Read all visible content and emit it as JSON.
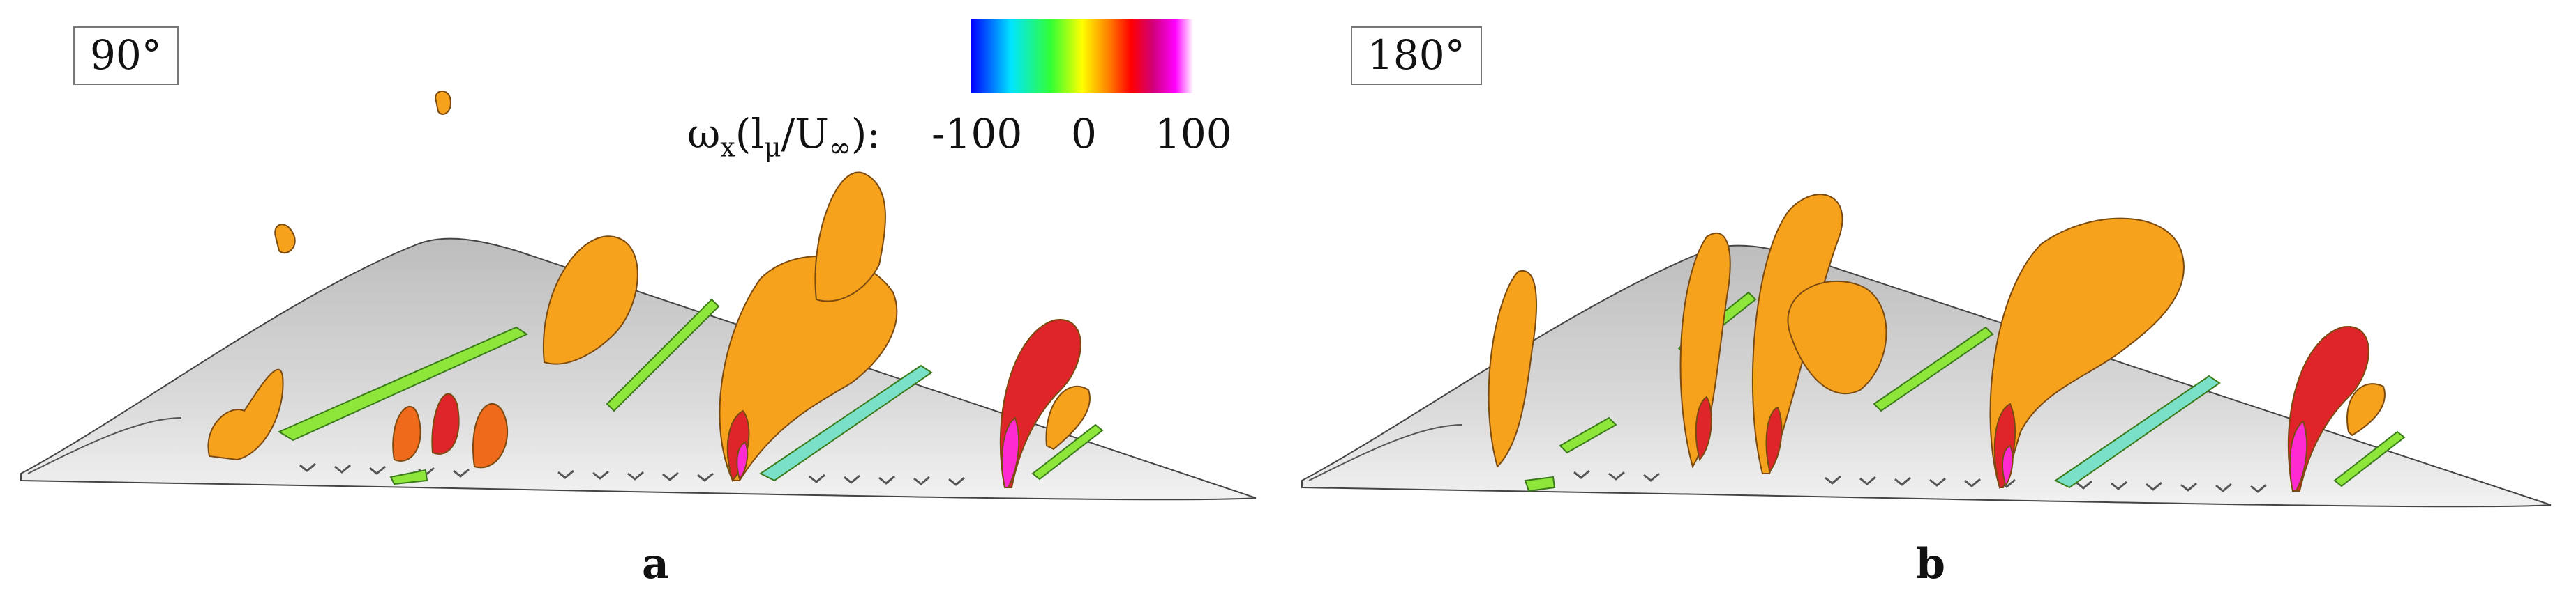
{
  "panels": [
    {
      "angle_label": "90°",
      "letter": "a"
    },
    {
      "angle_label": "180°",
      "letter": "b"
    }
  ],
  "colorbar": {
    "symbol": "ω",
    "sub_x": "x",
    "paren_open": "(l",
    "sub_mu": "μ",
    "slash_u": "/U",
    "sub_inf": "∞",
    "paren_close": "):",
    "ticks": [
      "-100",
      "0",
      "100"
    ],
    "colors": [
      "#0000ff",
      "#00e5ff",
      "#33ff33",
      "#ffff00",
      "#ff7f00",
      "#ff0000",
      "#d0007a",
      "#ff00ff",
      "#ffffff"
    ]
  },
  "colors": {
    "wing": "#d2d2d2",
    "iso_orange": "#f7a21c",
    "iso_red": "#e0252a",
    "iso_green": "#8ee63a",
    "iso_magenta": "#ff2bd0"
  }
}
